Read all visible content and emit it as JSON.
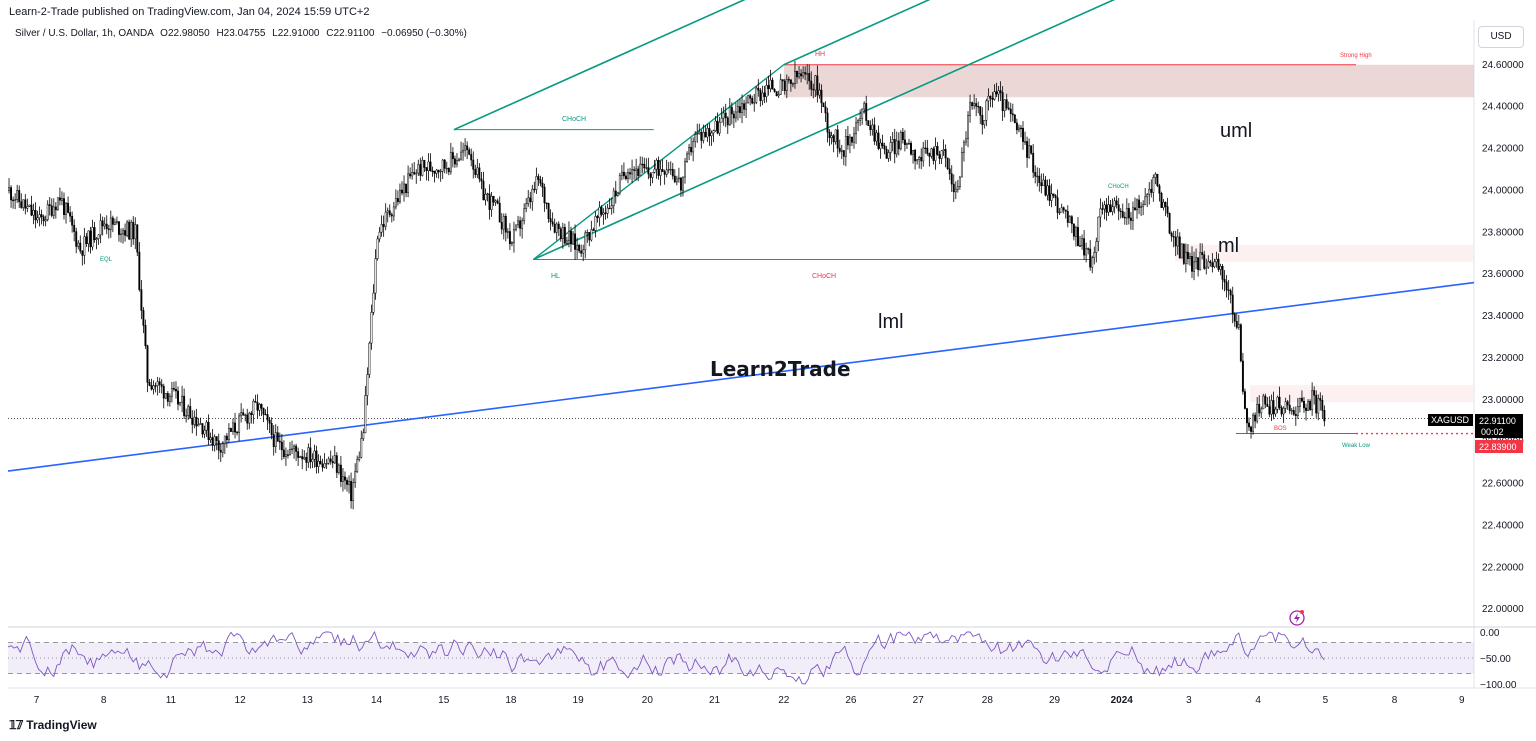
{
  "header": {
    "published_line": "Learn-2-Trade published on TradingView.com, Jan 04, 2024 15:59 UTC+2"
  },
  "legend": {
    "symbol_line": "Silver / U.S. Dollar, 1h, OANDA",
    "open": "O22.98050",
    "high": "H23.04755",
    "low": "L22.91000",
    "close": "C22.91100",
    "change": "−0.06950 (−0.30%)"
  },
  "currency_button": "USD",
  "watermark": "Learn2Trade",
  "footer": {
    "brand": "TradingView"
  },
  "price_tags": {
    "symbol": "XAGUSD",
    "last_price": "22.91100",
    "countdown": "00:02",
    "level_price": "22.83900"
  },
  "annotations": {
    "hh": "HH",
    "hl": "HL",
    "choch_top": "CHoCH",
    "choch_bottom": "CHoCH",
    "choch_small": "CHoCH",
    "eql": "EQL",
    "bos": "BOS",
    "strong_high": "Strong High",
    "weak_low": "Weak Low",
    "uml": "uml",
    "ml": "ml",
    "lml": "lml"
  },
  "rsi_axis": [
    "0.00",
    "−50.00",
    "−100.00"
  ],
  "colors": {
    "up": "#ffffff",
    "down": "#000000",
    "pitchfork": "#089981",
    "trendline": "#2962ff",
    "supply_zone": "#e0bcbc",
    "red_line": "#f23645",
    "oscillator": "#7e57c2",
    "last_price_bg": "#000000",
    "level_bg": "#f23645"
  },
  "chart_data": {
    "type": "candlestick",
    "title": "Silver / U.S. Dollar, 1h, OANDA",
    "y_axis": {
      "ticks": [
        22.0,
        22.2,
        22.4,
        22.6,
        22.8,
        23.0,
        23.2,
        23.4,
        23.6,
        23.8,
        24.0,
        24.2,
        24.4,
        24.6
      ],
      "tick_labels": [
        "22.00000",
        "22.20000",
        "22.40000",
        "22.60000",
        "22.80000",
        "23.00000",
        "23.20000",
        "23.40000",
        "23.60000",
        "23.80000",
        "24.00000",
        "24.20000",
        "24.40000",
        "24.60000"
      ],
      "range": [
        21.92,
        24.68
      ]
    },
    "x_axis": {
      "tick_labels": [
        "7",
        "8",
        "11",
        "12",
        "13",
        "14",
        "15",
        "18",
        "19",
        "20",
        "21",
        "22",
        "26",
        "27",
        "28",
        "29",
        "2024",
        "3",
        "4",
        "5",
        "8",
        "9"
      ],
      "tick_bars": [
        14,
        47,
        80,
        114,
        147,
        181,
        214,
        247,
        280,
        314,
        347,
        381,
        414,
        447,
        481,
        514,
        547,
        580,
        614,
        647,
        681,
        714
      ],
      "bars_total": 720
    },
    "path_points": [
      [
        0,
        24.0
      ],
      [
        15,
        23.85
      ],
      [
        25,
        23.97
      ],
      [
        35,
        23.72
      ],
      [
        47,
        23.85
      ],
      [
        55,
        23.82
      ],
      [
        62,
        23.8
      ],
      [
        68,
        23.1
      ],
      [
        80,
        23.02
      ],
      [
        95,
        22.88
      ],
      [
        103,
        22.78
      ],
      [
        114,
        22.9
      ],
      [
        122,
        22.97
      ],
      [
        132,
        22.78
      ],
      [
        145,
        22.74
      ],
      [
        160,
        22.7
      ],
      [
        168,
        22.55
      ],
      [
        174,
        22.85
      ],
      [
        181,
        23.8
      ],
      [
        190,
        23.95
      ],
      [
        200,
        24.1
      ],
      [
        214,
        24.12
      ],
      [
        226,
        24.2
      ],
      [
        232,
        24.0
      ],
      [
        240,
        23.9
      ],
      [
        247,
        23.75
      ],
      [
        260,
        24.05
      ],
      [
        267,
        23.85
      ],
      [
        272,
        23.8
      ],
      [
        280,
        23.72
      ],
      [
        288,
        23.85
      ],
      [
        296,
        23.95
      ],
      [
        304,
        24.12
      ],
      [
        314,
        24.08
      ],
      [
        324,
        24.13
      ],
      [
        330,
        24.02
      ],
      [
        336,
        24.25
      ],
      [
        347,
        24.3
      ],
      [
        356,
        24.38
      ],
      [
        366,
        24.45
      ],
      [
        375,
        24.5
      ],
      [
        381,
        24.48
      ],
      [
        388,
        24.55
      ],
      [
        397,
        24.5
      ],
      [
        403,
        24.28
      ],
      [
        410,
        24.2
      ],
      [
        420,
        24.38
      ],
      [
        430,
        24.18
      ],
      [
        440,
        24.25
      ],
      [
        447,
        24.15
      ],
      [
        458,
        24.2
      ],
      [
        465,
        23.98
      ],
      [
        472,
        24.4
      ],
      [
        478,
        24.35
      ],
      [
        484,
        24.48
      ],
      [
        492,
        24.35
      ],
      [
        500,
        24.2
      ],
      [
        506,
        24.05
      ],
      [
        514,
        23.95
      ],
      [
        520,
        23.85
      ],
      [
        527,
        23.75
      ],
      [
        532,
        23.65
      ],
      [
        537,
        23.95
      ],
      [
        547,
        23.88
      ],
      [
        556,
        23.92
      ],
      [
        563,
        24.06
      ],
      [
        570,
        23.82
      ],
      [
        575,
        23.72
      ],
      [
        580,
        23.65
      ],
      [
        590,
        23.68
      ],
      [
        597,
        23.58
      ],
      [
        604,
        23.32
      ],
      [
        607,
        22.95
      ],
      [
        610,
        22.85
      ],
      [
        614,
        22.98
      ],
      [
        622,
        22.97
      ],
      [
        630,
        22.96
      ],
      [
        640,
        23.0
      ],
      [
        647,
        22.93
      ]
    ],
    "levels": {
      "last_price": 22.911,
      "bos_level": 22.839,
      "strong_high": 24.6,
      "supply_zone": [
        24.445,
        24.6
      ],
      "choch_top": 24.29,
      "choch_bottom": 23.67
    },
    "pitchfork": {
      "hh": [
        381,
        24.6
      ],
      "choch_pivot": [
        219,
        24.29
      ],
      "hl": [
        258,
        23.67
      ]
    },
    "trendline": [
      [
        0,
        22.66
      ],
      [
        720,
        23.56
      ]
    ],
    "indicator": {
      "type": "line",
      "axis_ticks": [
        0,
        -50,
        -100
      ],
      "bands": [
        -20,
        -80
      ]
    }
  }
}
